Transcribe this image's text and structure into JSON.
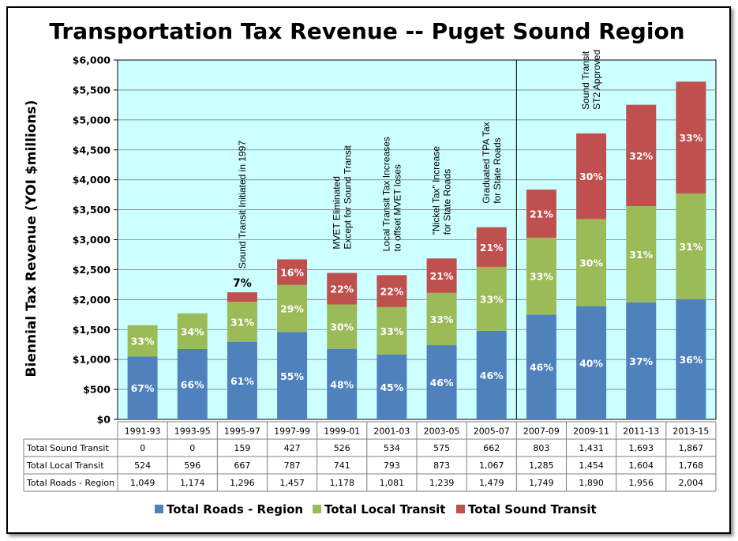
{
  "chart_data": {
    "type": "bar",
    "stacked": true,
    "title": "Transportation Tax Revenue -- Puget Sound Region",
    "ylabel": "Biennial Tax Revenue  (YOI $millions)",
    "ylim": [
      0,
      6000
    ],
    "yticks": [
      "$0",
      "$500",
      "$1,000",
      "$1,500",
      "$2,000",
      "$2,500",
      "$3,000",
      "$3,500",
      "$4,000",
      "$4,500",
      "$5,000",
      "$5,500",
      "$6,000"
    ],
    "ytick_values": [
      0,
      500,
      1000,
      1500,
      2000,
      2500,
      3000,
      3500,
      4000,
      4500,
      5000,
      5500,
      6000
    ],
    "grid": true,
    "categories": [
      "1991-93",
      "1993-95",
      "1995-97",
      "1997-99",
      "1999-01",
      "2001-03",
      "2003-05",
      "2005-07",
      "2007-09",
      "2009-11",
      "2011-13",
      "2013-15"
    ],
    "series": [
      {
        "name": "Total Roads - Region",
        "color": "#4f81bd",
        "values": [
          1049,
          1174,
          1296,
          1457,
          1178,
          1081,
          1239,
          1479,
          1749,
          1890,
          1956,
          2004
        ],
        "labels": [
          "67%",
          "66%",
          "61%",
          "55%",
          "48%",
          "45%",
          "46%",
          "46%",
          "46%",
          "40%",
          "37%",
          "36%"
        ],
        "table_values": [
          "1,049",
          "1,174",
          "1,296",
          "1,457",
          "1,178",
          "1,081",
          "1,239",
          "1,479",
          "1,749",
          "1,890",
          "1,956",
          "2,004"
        ]
      },
      {
        "name": "Total Local Transit",
        "color": "#9bbb59",
        "values": [
          524,
          596,
          667,
          787,
          741,
          793,
          873,
          1067,
          1285,
          1454,
          1604,
          1768
        ],
        "labels": [
          "33%",
          "34%",
          "31%",
          "29%",
          "30%",
          "33%",
          "33%",
          "33%",
          "33%",
          "30%",
          "31%",
          "31%"
        ],
        "table_values": [
          "524",
          "596",
          "667",
          "787",
          "741",
          "793",
          "873",
          "1,067",
          "1,285",
          "1,454",
          "1,604",
          "1,768"
        ]
      },
      {
        "name": "Total Sound Transit",
        "color": "#c0504d",
        "values": [
          0,
          0,
          159,
          427,
          526,
          534,
          575,
          662,
          803,
          1431,
          1693,
          1867
        ],
        "labels": [
          "",
          "",
          "7%",
          "16%",
          "22%",
          "22%",
          "21%",
          "21%",
          "21%",
          "30%",
          "32%",
          "33%"
        ],
        "table_values": [
          "0",
          "0",
          "159",
          "427",
          "526",
          "534",
          "575",
          "662",
          "803",
          "1,431",
          "1,693",
          "1,867"
        ]
      }
    ],
    "table_rows": [
      {
        "label": "Total Sound Transit",
        "series_index": 2
      },
      {
        "label": "Total Local Transit",
        "series_index": 1
      },
      {
        "label": "Total Roads - Region",
        "series_index": 0
      }
    ],
    "annotations": [
      {
        "category_index": 2,
        "lines": [
          "Sound Transit Initiated in 1997"
        ]
      },
      {
        "category_index": 4,
        "lines": [
          "MVET Eliminated",
          "Except for Sound Transit"
        ]
      },
      {
        "category_index": 5,
        "lines": [
          "Local Transit Tax Increases",
          "to offset MVET loses"
        ]
      },
      {
        "category_index": 6,
        "lines": [
          "\"Nickel Tax\" Increase",
          "for State Roads"
        ]
      },
      {
        "category_index": 7,
        "lines": [
          "Graduated TPA Tax",
          "for State Roads"
        ]
      },
      {
        "category_index": 9,
        "lines": [
          "Sound Transit",
          "ST2 Approved"
        ]
      }
    ],
    "divider_after_index": 7,
    "plot_background": "#ccffff",
    "legend_position": "bottom"
  }
}
